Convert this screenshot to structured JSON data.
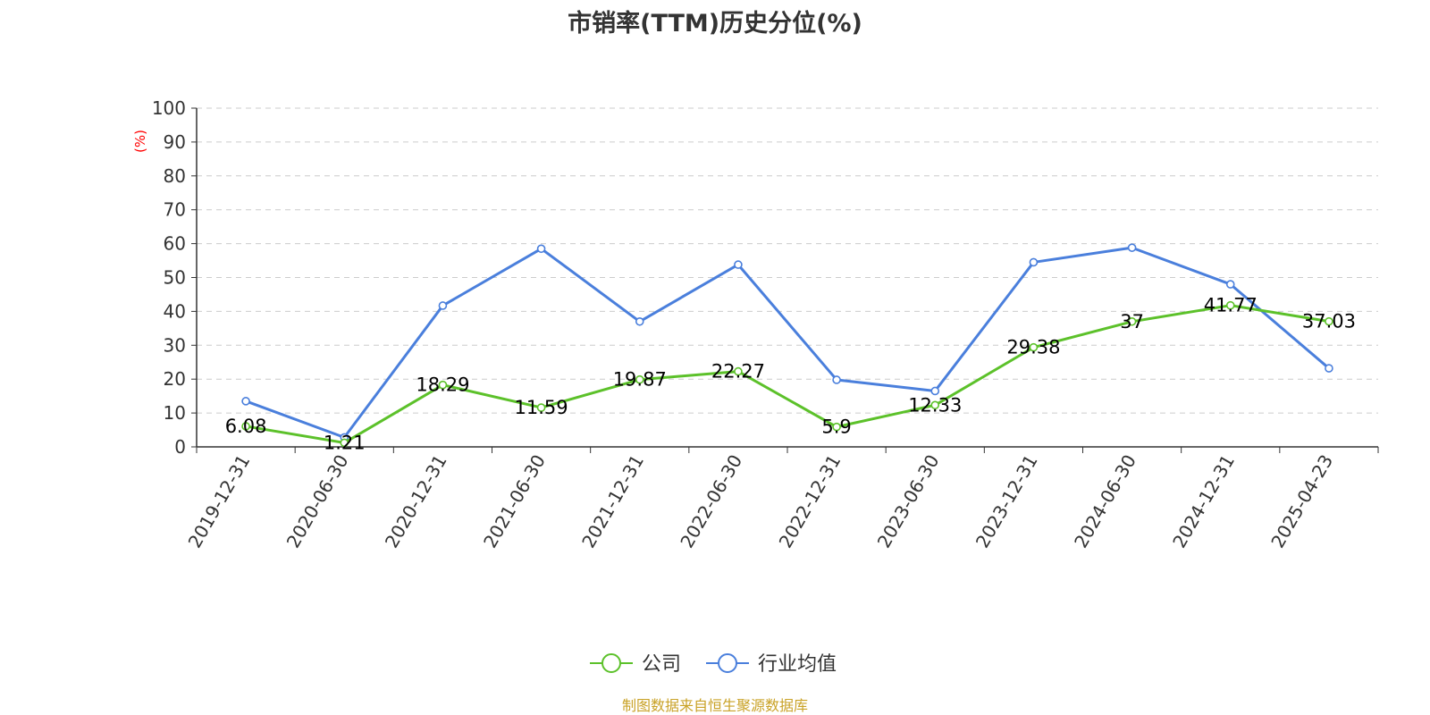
{
  "chart_data": {
    "type": "line",
    "title": "市销率(TTM)历史分位(%)",
    "ylabel": "(%)",
    "xlabel": "",
    "ylim": [
      0,
      100
    ],
    "yticks": [
      0,
      10,
      20,
      30,
      40,
      50,
      60,
      70,
      80,
      90,
      100
    ],
    "grid": true,
    "legend_position": "bottom-center",
    "categories": [
      "2019-12-31",
      "2020-06-30",
      "2020-12-31",
      "2021-06-30",
      "2021-12-31",
      "2022-06-30",
      "2022-12-31",
      "2023-06-30",
      "2023-12-31",
      "2024-06-30",
      "2024-12-31",
      "2025-04-23"
    ],
    "series": [
      {
        "name": "公司",
        "color": "#5cc12a",
        "values": [
          6.08,
          1.21,
          18.29,
          11.59,
          19.87,
          22.27,
          5.9,
          12.33,
          29.38,
          37,
          41.77,
          37.03
        ],
        "labels": [
          "6.08",
          "1.21",
          "18.29",
          "11.59",
          "19.87",
          "22.27",
          "5.9",
          "12.33",
          "29.38",
          "37",
          "41.77",
          "37.03"
        ]
      },
      {
        "name": "行业均值",
        "color": "#4a7fdc",
        "values": [
          13.5,
          2.8,
          41.7,
          58.5,
          37,
          53.8,
          19.8,
          16.5,
          54.5,
          58.8,
          48,
          23.2
        ]
      }
    ]
  },
  "source": "制图数据来自恒生聚源数据库",
  "colors": {
    "axis": "#333333",
    "grid": "#cccccc",
    "ylabel": "#ff0000"
  }
}
